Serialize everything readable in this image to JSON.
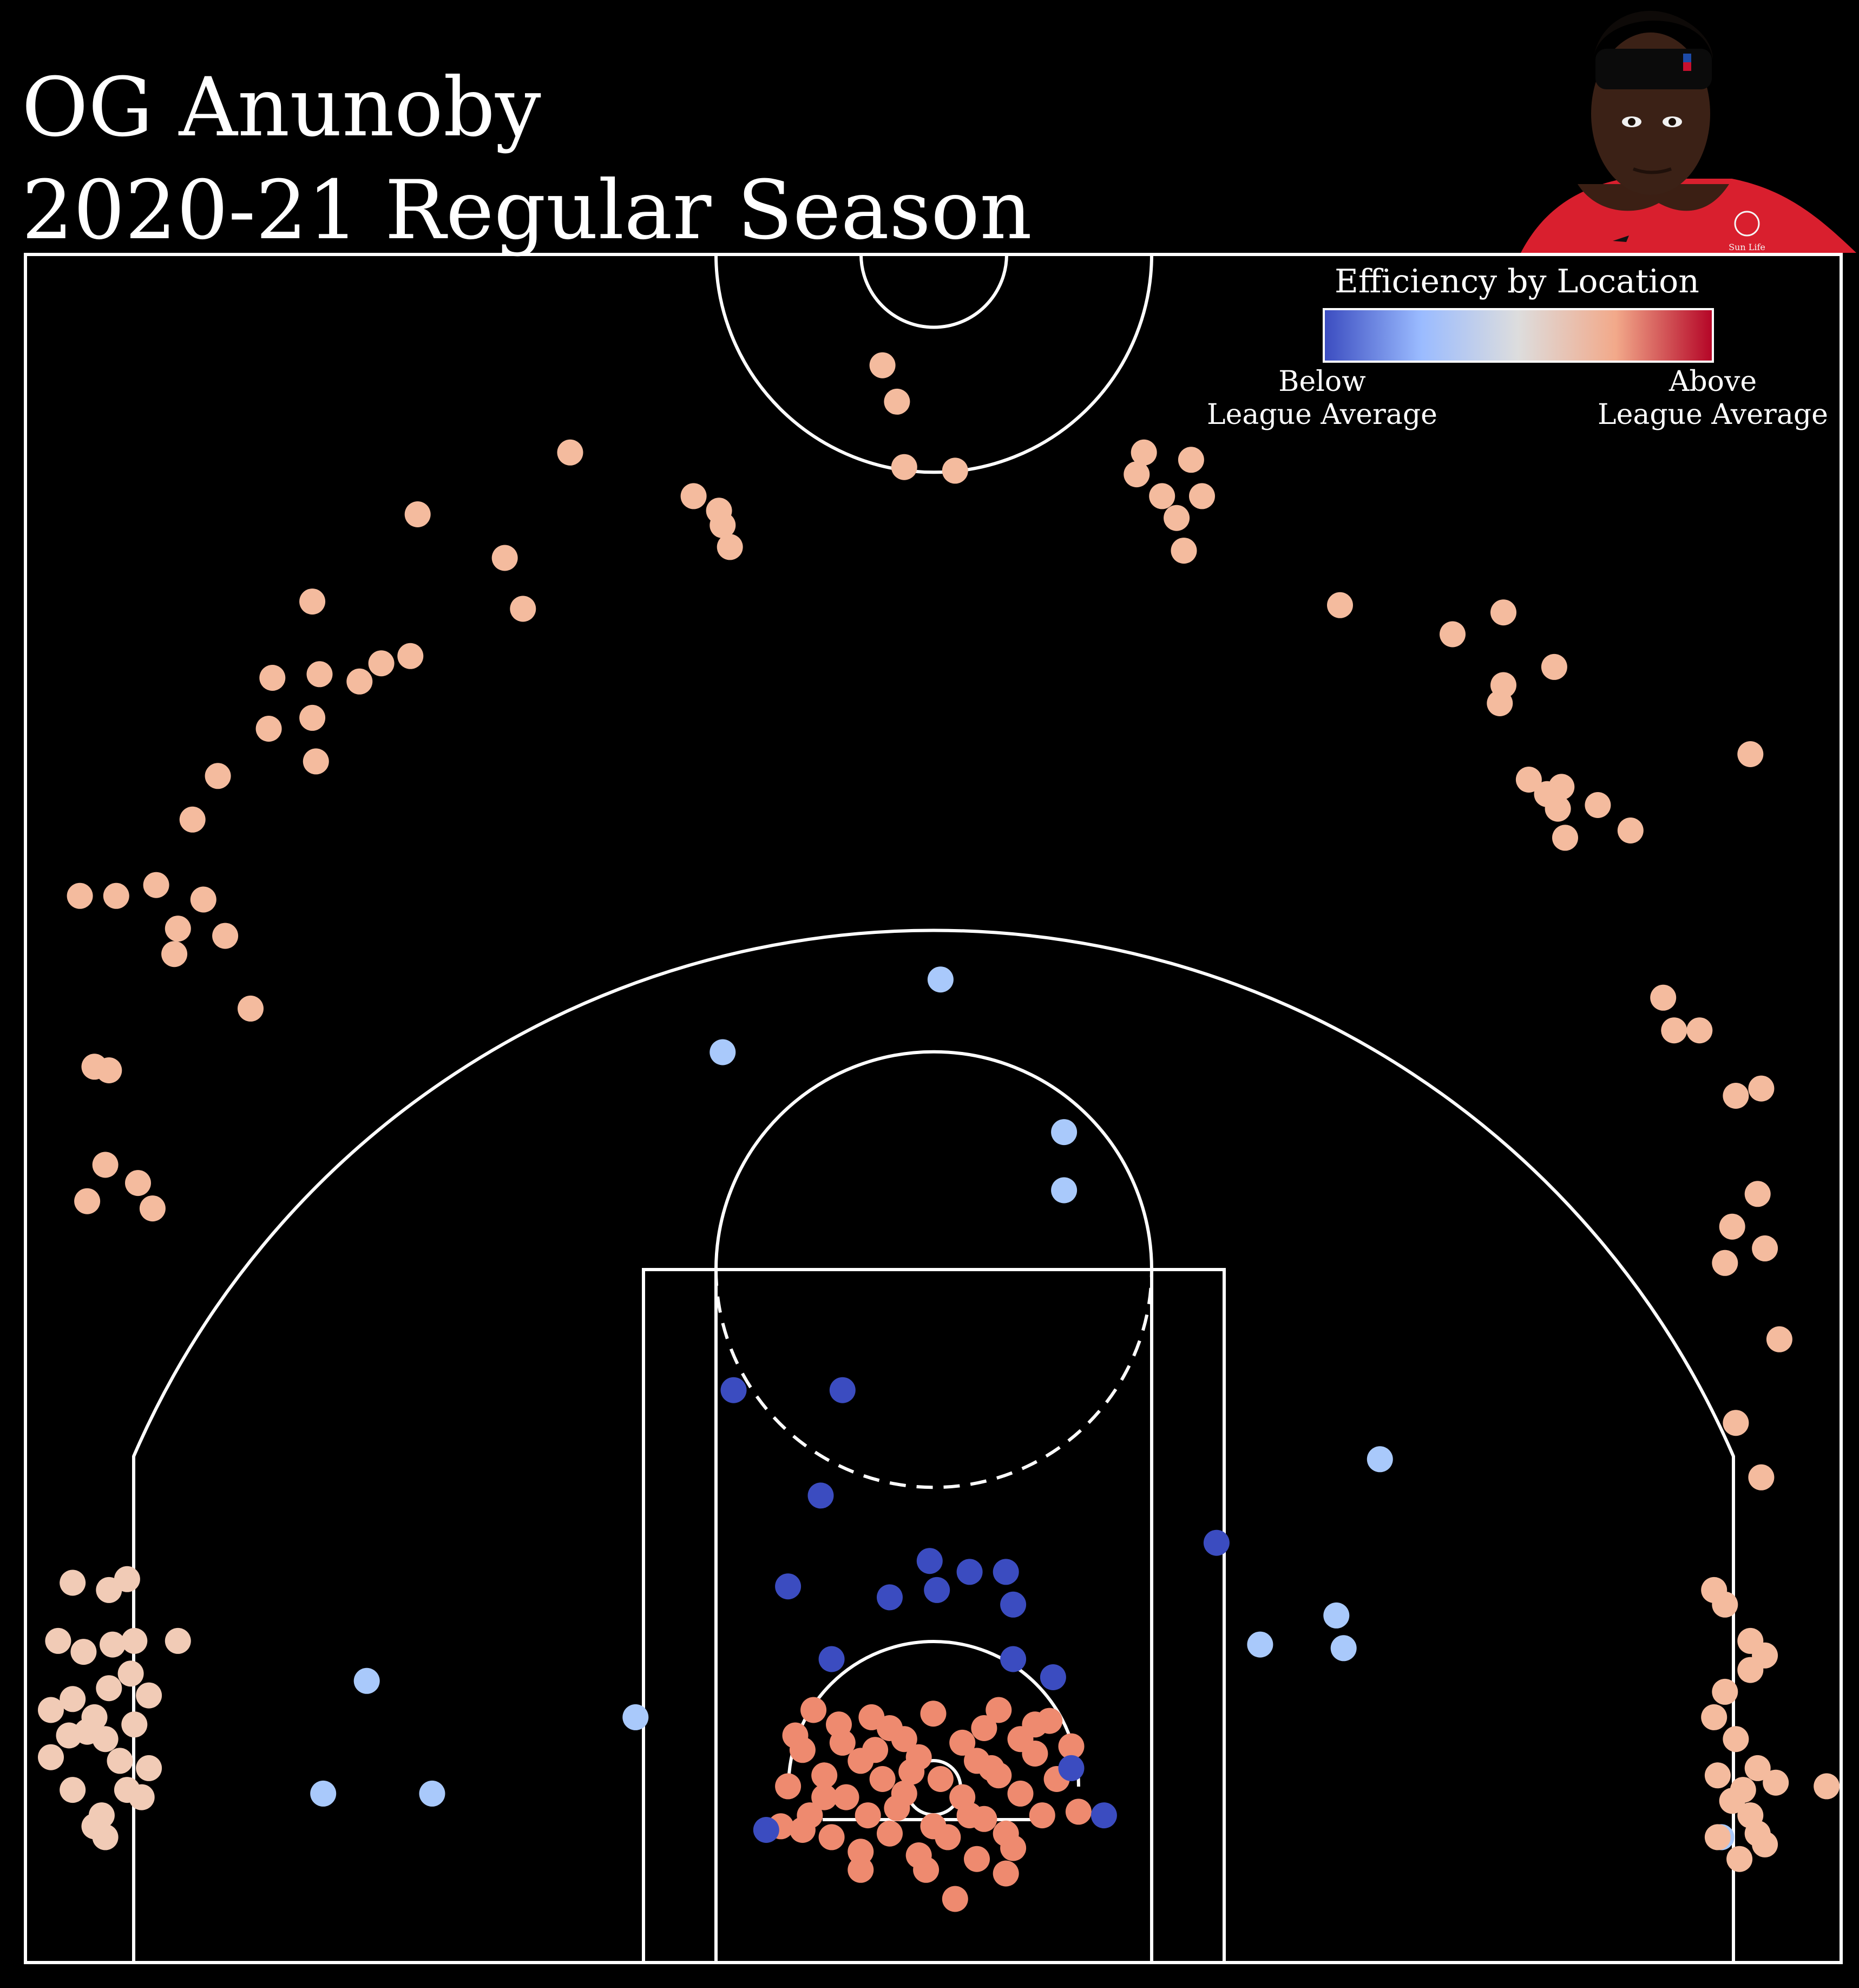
{
  "header": {
    "title_line1": "OG Anunoby",
    "title_line2": "2020-21 Regular Season"
  },
  "legend": {
    "title": "Efficiency by Location",
    "below_line1": "Below",
    "below_line2": "League Average",
    "above_line1": "Above",
    "above_line2": "League Average",
    "gradient": [
      "#3b4cc0",
      "#9abbff",
      "#dddddd",
      "#f2a98a",
      "#b40426"
    ]
  },
  "player_photo": {
    "jersey_text": "Sun Life",
    "jersey_color": "#d91f2e"
  },
  "chart_data": {
    "type": "scatter",
    "title": "",
    "subtitle": "",
    "xlabel": "",
    "ylabel": "",
    "xlim": [
      -250,
      250
    ],
    "ylim": [
      -47.5,
      422.5
    ],
    "grid": false,
    "legend_placement": "top-right",
    "color_levels": {
      "well_below": "#3b4cc0",
      "below": "#a9c9fb",
      "near": "#f1cbb6",
      "above": "#f4bb9e",
      "well_above": "#ee8a6f"
    },
    "series": [
      {
        "level": "well_above",
        "points": [
          [
            -33,
            22
          ],
          [
            -17,
            20
          ],
          [
            0,
            21
          ],
          [
            18,
            22
          ],
          [
            32,
            19
          ],
          [
            -25,
            13
          ],
          [
            -8,
            14
          ],
          [
            8,
            13
          ],
          [
            24,
            14
          ],
          [
            -36,
            11
          ],
          [
            -20,
            8
          ],
          [
            -4,
            9
          ],
          [
            12,
            8
          ],
          [
            28,
            10
          ],
          [
            -30,
            4
          ],
          [
            -14,
            3
          ],
          [
            2,
            3
          ],
          [
            18,
            4
          ],
          [
            34,
            3
          ],
          [
            -40,
            1
          ],
          [
            -24,
            -2
          ],
          [
            -8,
            -1
          ],
          [
            8,
            -2
          ],
          [
            24,
            -1
          ],
          [
            -34,
            -7
          ],
          [
            -18,
            -7
          ],
          [
            14,
            -8
          ],
          [
            30,
            -7
          ],
          [
            -28,
            -13
          ],
          [
            -12,
            -12
          ],
          [
            4,
            -13
          ],
          [
            20,
            -12
          ],
          [
            -4,
            -18
          ],
          [
            12,
            -19
          ],
          [
            -20,
            -17
          ],
          [
            -2,
            -22
          ],
          [
            20,
            -23
          ],
          [
            6,
            -30
          ],
          [
            -26,
            18
          ],
          [
            28,
            18
          ],
          [
            -12,
            17
          ],
          [
            14,
            17
          ],
          [
            -36,
            -11
          ],
          [
            -6,
            5
          ],
          [
            -20,
            -22
          ],
          [
            40,
            -6
          ],
          [
            -42,
            -10
          ],
          [
            -30,
            -2
          ],
          [
            38,
            12
          ],
          [
            -10,
            -5
          ],
          [
            10,
            -7
          ],
          [
            0,
            -10
          ],
          [
            -16,
            11
          ],
          [
            22,
            -16
          ],
          [
            -38,
            15
          ],
          [
            16,
            6
          ]
        ]
      },
      {
        "level": "well_below",
        "points": [
          [
            -55,
            110
          ],
          [
            -25,
            110
          ],
          [
            -31,
            81
          ],
          [
            -40,
            56
          ],
          [
            -1,
            63
          ],
          [
            1,
            55
          ],
          [
            10,
            60
          ],
          [
            20,
            60
          ],
          [
            -12,
            53
          ],
          [
            22,
            51
          ],
          [
            -28,
            36
          ],
          [
            22,
            36
          ],
          [
            33,
            31
          ],
          [
            38,
            6
          ],
          [
            -46,
            -11
          ],
          [
            47,
            -7
          ],
          [
            78,
            68
          ]
        ]
      },
      {
        "level": "below",
        "points": [
          [
            -58,
            203
          ],
          [
            2,
            223
          ],
          [
            36,
            181
          ],
          [
            36,
            165
          ],
          [
            -156,
            30
          ],
          [
            -168,
            -1
          ],
          [
            -138,
            -1
          ],
          [
            -82,
            20
          ],
          [
            90,
            40
          ],
          [
            111,
            48
          ],
          [
            113,
            39
          ],
          [
            123,
            91
          ],
          [
            217,
            -13
          ]
        ]
      },
      {
        "level": "near",
        "points": [
          [
            -237,
            57
          ],
          [
            -227,
            55
          ],
          [
            -222,
            58
          ],
          [
            -241,
            41
          ],
          [
            -226,
            40
          ],
          [
            -234,
            38
          ],
          [
            -237,
            25
          ],
          [
            -227,
            28
          ],
          [
            -216,
            26
          ],
          [
            -221,
            32
          ],
          [
            -220,
            18
          ],
          [
            -231,
            20
          ],
          [
            -243,
            22
          ],
          [
            -238,
            15
          ],
          [
            -228,
            14
          ],
          [
            -224,
            8
          ],
          [
            -216,
            6
          ],
          [
            -243,
            9
          ],
          [
            -220,
            41
          ],
          [
            -208,
            41
          ],
          [
            -218,
            -2
          ],
          [
            -229,
            -7
          ],
          [
            -228,
            -13
          ],
          [
            -222,
            0
          ],
          [
            -233,
            16
          ],
          [
            -237,
            0
          ],
          [
            -231,
            -10
          ]
        ]
      },
      {
        "level": "above",
        "points": [
          [
            -14,
            392
          ],
          [
            -10,
            382
          ],
          [
            -142,
            351
          ],
          [
            -118,
            339
          ],
          [
            -100,
            368
          ],
          [
            -66,
            356
          ],
          [
            -59,
            352
          ],
          [
            -58,
            348
          ],
          [
            -8,
            364
          ],
          [
            6,
            363
          ],
          [
            56,
            362
          ],
          [
            58,
            368
          ],
          [
            63,
            356
          ],
          [
            67,
            350
          ],
          [
            71,
            366
          ],
          [
            74,
            356
          ],
          [
            69,
            341
          ],
          [
            -171,
            327
          ],
          [
            -113,
            325
          ],
          [
            -56,
            342
          ],
          [
            -144,
            312
          ],
          [
            -169,
            307
          ],
          [
            -158,
            305
          ],
          [
            -152,
            310
          ],
          [
            -182,
            306
          ],
          [
            -183,
            292
          ],
          [
            -197,
            279
          ],
          [
            -171,
            295
          ],
          [
            -170,
            283
          ],
          [
            -214,
            249
          ],
          [
            -204,
            267
          ],
          [
            -225,
            246
          ],
          [
            -235,
            246
          ],
          [
            -227,
            198
          ],
          [
            -231,
            199
          ],
          [
            -219,
            167
          ],
          [
            -228,
            172
          ],
          [
            -233,
            162
          ],
          [
            -215,
            160
          ],
          [
            -188,
            215
          ],
          [
            -209,
            230
          ],
          [
            -195,
            235
          ],
          [
            -201,
            245
          ],
          [
            -208,
            237
          ],
          [
            112,
            326
          ],
          [
            143,
            318
          ],
          [
            157,
            324
          ],
          [
            171,
            309
          ],
          [
            156,
            299
          ],
          [
            157,
            304
          ],
          [
            164,
            278
          ],
          [
            169,
            274
          ],
          [
            172,
            270
          ],
          [
            174,
            262
          ],
          [
            183,
            271
          ],
          [
            192,
            264
          ],
          [
            173,
            276
          ],
          [
            225,
            285
          ],
          [
            201,
            218
          ],
          [
            204,
            209
          ],
          [
            211,
            209
          ],
          [
            221,
            191
          ],
          [
            228,
            193
          ],
          [
            227,
            164
          ],
          [
            220,
            155
          ],
          [
            218,
            145
          ],
          [
            229,
            149
          ],
          [
            233,
            124
          ],
          [
            221,
            101
          ],
          [
            228,
            86
          ],
          [
            215,
            55
          ],
          [
            218,
            51
          ],
          [
            225,
            41
          ],
          [
            229,
            37
          ],
          [
            225,
            33
          ],
          [
            218,
            27
          ],
          [
            215,
            20
          ],
          [
            221,
            14
          ],
          [
            227,
            6
          ],
          [
            216,
            4
          ],
          [
            223,
            0
          ],
          [
            225,
            -7
          ],
          [
            232,
            2
          ],
          [
            246,
            1
          ],
          [
            216,
            -13
          ],
          [
            229,
            -15
          ],
          [
            222,
            -19
          ],
          [
            220,
            -3
          ],
          [
            227,
            -12
          ]
        ]
      }
    ]
  }
}
